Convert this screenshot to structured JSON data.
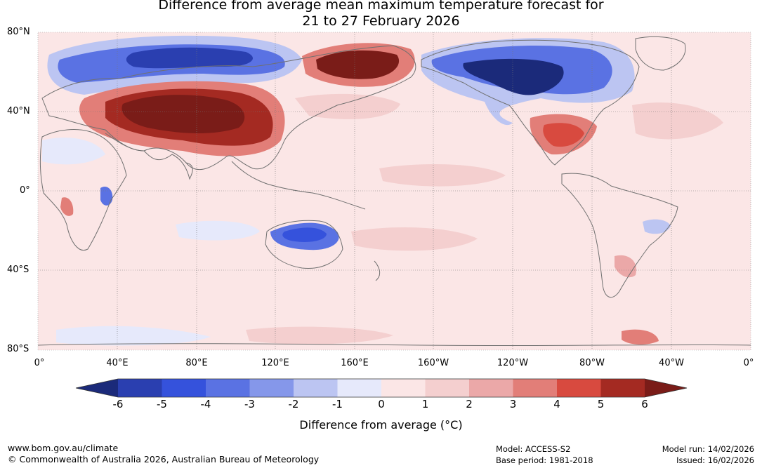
{
  "title": {
    "line1": "Difference from average mean maximum temperature forecast for",
    "line2": "21 to 27 February 2026"
  },
  "axes": {
    "lat_labels": [
      "80°N",
      "40°N",
      "0°",
      "40°S",
      "80°S"
    ],
    "lon_labels": [
      "0°",
      "40°E",
      "80°E",
      "120°E",
      "160°E",
      "160°W",
      "120°W",
      "80°W",
      "40°W",
      "0°"
    ]
  },
  "colorbar": {
    "ticks": [
      "-6",
      "-5",
      "-4",
      "-3",
      "-2",
      "-1",
      "0",
      "1",
      "2",
      "3",
      "4",
      "5",
      "6"
    ],
    "colors": {
      "below_min": "#1b2a7a",
      "c_m6": "#2a3fb0",
      "c_m5": "#3552dc",
      "c_m4": "#5a72e3",
      "c_m3": "#8597ea",
      "c_m2": "#bcc5f2",
      "c_m1": "#e6e9fb",
      "c_0": "#fbe6e6",
      "c_1": "#f4cfcf",
      "c_2": "#eba8a8",
      "c_3": "#e27e78",
      "c_4": "#d84a3f",
      "c_5": "#a42a22",
      "above_max": "#7a1c18"
    },
    "label": "Difference from average (°C)"
  },
  "footer": {
    "url": "www.bom.gov.au/climate",
    "copyright": "© Commonwealth of Australia 2026, Australian Bureau of Meteorology",
    "model": "Model: ACCESS-S2",
    "base_period": "Base period: 1981-2018",
    "model_run": "Model run: 14/02/2026",
    "issued": "Issued: 16/02/2026"
  }
}
